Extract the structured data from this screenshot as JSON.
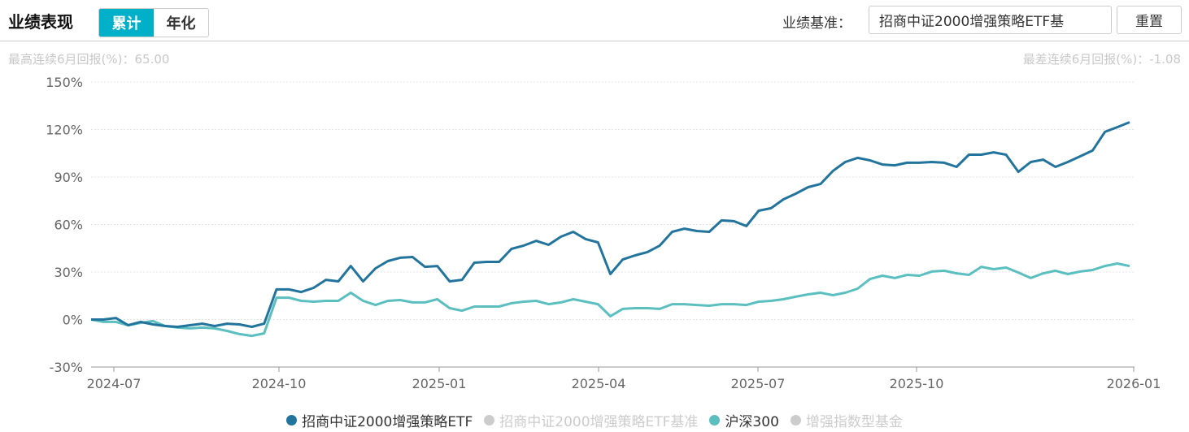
{
  "header": {
    "title": "业绩表现",
    "tabs": [
      {
        "label": "累计",
        "active": true
      },
      {
        "label": "年化",
        "active": false
      }
    ],
    "benchmark_label": "业绩基准：",
    "benchmark_value": "招商中证2000增强策略ETF基",
    "reset_label": "重置"
  },
  "stats": {
    "best": "最高连续6月回报(%)：65.00",
    "worst": "最差连续6月回报(%)：-1.08"
  },
  "colors": {
    "accent": "#00afc8",
    "fund": "#22749c",
    "hs300": "#5bbfc0",
    "inactive": "#cccccc"
  },
  "chart_data": {
    "type": "line",
    "ylim": [
      -30,
      150
    ],
    "y_ticks": [
      "150%",
      "120%",
      "90%",
      "60%",
      "30%",
      "0%",
      "-30%"
    ],
    "y_tick_values": [
      150,
      120,
      90,
      60,
      30,
      0,
      -30
    ],
    "x_ticks": [
      "2024-07",
      "2024-10",
      "2025-01",
      "2025-04",
      "2025-07",
      "2025-10",
      "2026-01"
    ],
    "grid": true,
    "legend_position": "bottom",
    "series": [
      {
        "name": "招商中证2000增强策略ETF",
        "visible": true,
        "color": "#22749c",
        "values": [
          0,
          0,
          1.0,
          -3.6,
          -1.5,
          -3.1,
          -4.1,
          -4.6,
          -3.6,
          -2.6,
          -4.1,
          -2.6,
          -3.1,
          -4.6,
          -2.6,
          19.0,
          19.0,
          17.4,
          20.0,
          25.1,
          24.1,
          33.8,
          24.1,
          32.3,
          36.9,
          39.0,
          39.5,
          33.3,
          33.8,
          24.1,
          25.1,
          35.9,
          36.4,
          36.4,
          44.6,
          46.7,
          49.7,
          47.2,
          52.3,
          55.4,
          50.8,
          48.7,
          28.7,
          37.9,
          40.5,
          42.6,
          46.7,
          55.4,
          57.4,
          55.9,
          55.4,
          62.6,
          62.1,
          59.0,
          68.7,
          70.3,
          75.9,
          79.5,
          83.6,
          85.6,
          93.8,
          99.5,
          102.1,
          100.5,
          97.9,
          97.4,
          99.0,
          99.0,
          99.5,
          99.0,
          96.4,
          104.1,
          104.1,
          105.6,
          104.1,
          93.3,
          99.5,
          101.0,
          96.4,
          99.5,
          103.1,
          106.7,
          118.5,
          121.5,
          124.6
        ]
      },
      {
        "name": "招商中证2000增强策略ETF基准",
        "visible": false,
        "color": "#cccccc",
        "values": []
      },
      {
        "name": "沪深300",
        "visible": true,
        "color": "#5bbfc0",
        "values": [
          0,
          -1.5,
          -1.5,
          -3.6,
          -2.1,
          -1.0,
          -4.1,
          -5.1,
          -5.6,
          -5.1,
          -5.6,
          -7.2,
          -9.2,
          -10.3,
          -8.7,
          13.8,
          13.8,
          11.8,
          11.3,
          11.8,
          11.8,
          16.9,
          11.8,
          9.2,
          11.8,
          12.3,
          10.8,
          10.8,
          12.8,
          7.2,
          5.6,
          8.2,
          8.2,
          8.2,
          10.3,
          11.3,
          11.8,
          9.7,
          10.8,
          12.8,
          11.3,
          9.7,
          2.1,
          6.7,
          7.2,
          7.2,
          6.7,
          9.7,
          9.7,
          9.2,
          8.7,
          9.7,
          9.7,
          9.2,
          11.3,
          11.8,
          12.8,
          14.4,
          15.9,
          16.9,
          15.4,
          16.9,
          19.5,
          25.6,
          27.7,
          26.2,
          28.2,
          27.7,
          30.3,
          30.8,
          29.2,
          28.2,
          33.3,
          31.8,
          32.8,
          29.7,
          26.2,
          29.2,
          30.8,
          28.7,
          30.3,
          31.3,
          33.8,
          35.4,
          33.8
        ]
      },
      {
        "name": "增强指数型基金",
        "visible": false,
        "color": "#cccccc",
        "values": []
      }
    ]
  }
}
